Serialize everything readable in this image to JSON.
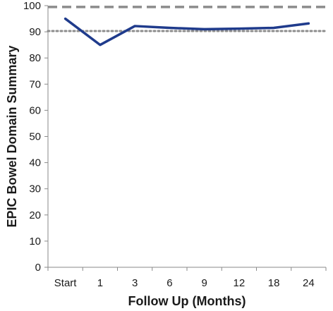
{
  "chart_data": {
    "type": "line",
    "title": "",
    "xlabel": "Follow Up (Months)",
    "ylabel": "EPIC Bowel Domain Summary",
    "categories": [
      "Start",
      "1",
      "3",
      "6",
      "9",
      "12",
      "18",
      "24"
    ],
    "series": [
      {
        "values": [
          95,
          85,
          92.2,
          91.5,
          91,
          91.2,
          91.5,
          93.2
        ],
        "color": "#1f3b8c"
      }
    ],
    "reference_lines": [
      {
        "value": 99.5,
        "style": "dashed",
        "color": "#8c8c8c"
      },
      {
        "value": 90.3,
        "style": "dotted",
        "color": "#8c8c8c"
      }
    ],
    "ylim": [
      0,
      100
    ],
    "yticks": [
      0,
      10,
      20,
      30,
      40,
      50,
      60,
      70,
      80,
      90,
      100
    ],
    "grid": false,
    "legend": "none"
  }
}
